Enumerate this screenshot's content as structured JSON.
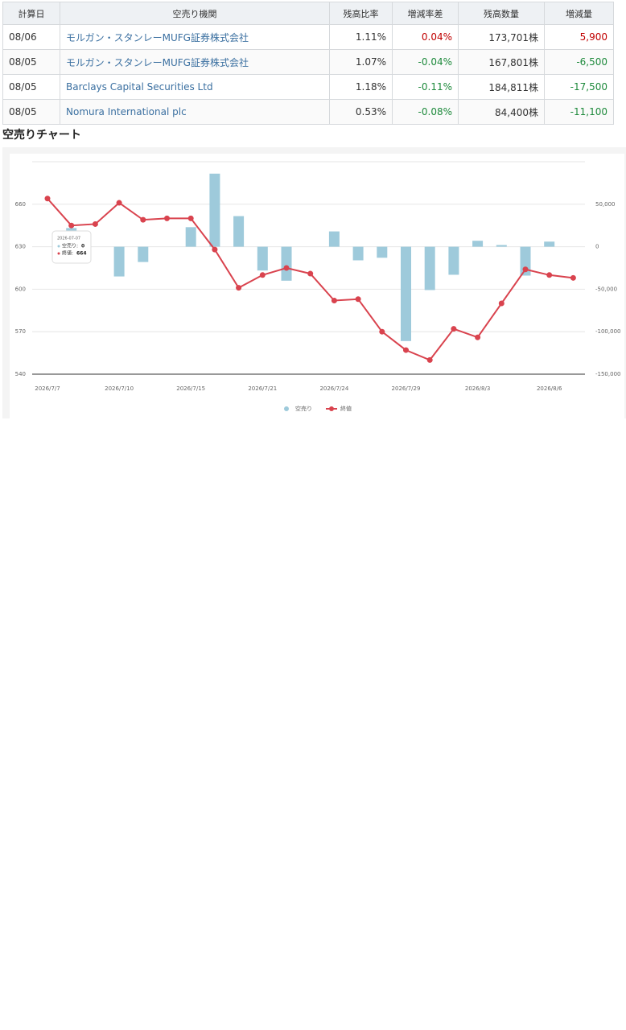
{
  "table": {
    "header": [
      "計算日",
      "空売り機関",
      "残高比率",
      "増減率差",
      "残高数量",
      "増減量"
    ],
    "rows": [
      [
        "08/06",
        "モルガン・スタンレーMUFG証券株式会社",
        "1.11%",
        "0.04%",
        "173,701株",
        "5,900"
      ],
      [
        "08/05",
        "モルガン・スタンレーMUFG証券株式会社",
        "1.07%",
        "-0.04%",
        "167,801株",
        "-6,500"
      ],
      [
        "08/05",
        "Barclays Capital Securities Ltd",
        "1.18%",
        "-0.11%",
        "184,811株",
        "-17,500"
      ],
      [
        "08/05",
        "Nomura International plc",
        "0.53%",
        "-0.08%",
        "84,400株",
        "-11,100"
      ]
    ],
    "colors": {
      "link": "#3a6fa0",
      "up": "#c00000",
      "down": "#1e8a3c"
    }
  },
  "section_title": "空売りチャート",
  "chart_data": {
    "type": "bar-line",
    "categories": [
      "2026/7/7",
      null,
      null,
      "2026/7/10",
      null,
      null,
      "2026/7/15",
      null,
      null,
      "2026/7/21",
      null,
      null,
      "2026/7/24",
      null,
      null,
      "2026/7/29",
      null,
      null,
      "2026/8/3",
      null,
      null,
      "2026/8/6",
      null
    ],
    "series": [
      {
        "name": "空売り",
        "color": "#9ecadb",
        "axis": "y2",
        "type": "bar",
        "values": [
          0,
          22000,
          0,
          -35000,
          -18000,
          0,
          23000,
          86000,
          36000,
          -28000,
          -40000,
          0,
          18000,
          -16000,
          -13000,
          -111000,
          -51000,
          -33000,
          7000,
          2000,
          -34000,
          6000,
          0
        ]
      },
      {
        "name": "終値",
        "color": "#d9434e",
        "axis": "y",
        "type": "line",
        "values": [
          664,
          645,
          646,
          661,
          649,
          650,
          650,
          628,
          601,
          610,
          615,
          611,
          592,
          593,
          570,
          557,
          550,
          572,
          566,
          590,
          614,
          610,
          608
        ]
      }
    ],
    "ylim": [
      540,
      690
    ],
    "yticks": [
      540,
      570,
      600,
      630,
      660
    ],
    "y2lim": [
      -150000,
      100000
    ],
    "y2ticks": [
      {
        "value": -150000,
        "label": "-150,000"
      },
      {
        "value": -100000,
        "label": "-100,000"
      },
      {
        "value": -50000,
        "label": "-50,000"
      },
      0,
      {
        "value": 50000,
        "label": "50,000"
      }
    ],
    "grid": true,
    "legend": "bottom",
    "tooltip": {
      "title": "2026-07-07",
      "rows": [
        {
          "label": "空売り:",
          "value": "0"
        },
        {
          "label": "終値:",
          "value": "664"
        }
      ]
    }
  }
}
